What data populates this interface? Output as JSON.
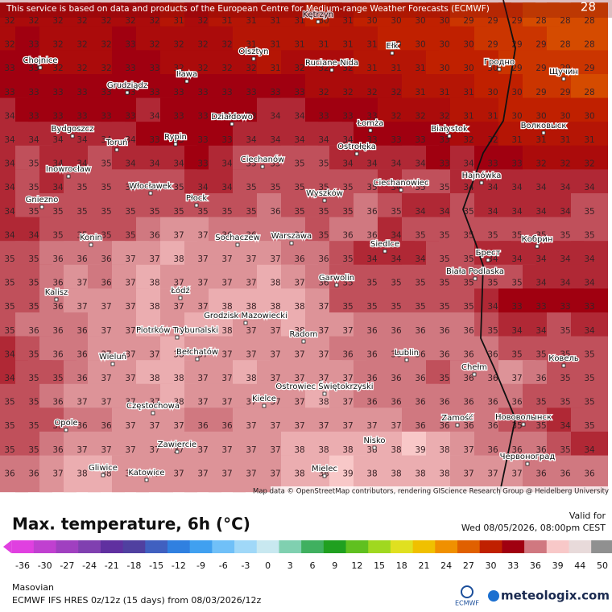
{
  "header": {
    "notice": "This service is based on data and products of the European Centre for Medium-range Weather Forecasts (ECMWF)",
    "frame": "28"
  },
  "map": {
    "attribution": "Map data © OpenStreetMap contributors, rendering GIScience Research Group @ Heidelberg University",
    "values": [
      [
        32,
        32,
        32,
        32,
        32,
        32,
        32,
        31,
        32,
        31,
        31,
        31,
        31,
        30,
        31,
        30,
        30,
        30,
        30,
        29,
        29,
        29,
        28,
        28,
        28
      ],
      [
        32,
        33,
        32,
        32,
        32,
        33,
        32,
        32,
        32,
        32,
        31,
        31,
        31,
        31,
        31,
        31,
        30,
        30,
        30,
        30,
        29,
        29,
        29,
        28,
        28
      ],
      [
        33,
        33,
        32,
        32,
        32,
        33,
        33,
        32,
        32,
        32,
        32,
        31,
        32,
        32,
        32,
        31,
        31,
        31,
        30,
        30,
        30,
        29,
        29,
        29,
        29
      ],
      [
        33,
        33,
        33,
        33,
        33,
        33,
        33,
        33,
        33,
        33,
        33,
        33,
        33,
        32,
        32,
        32,
        32,
        31,
        31,
        31,
        30,
        30,
        29,
        29,
        28
      ],
      [
        34,
        33,
        33,
        33,
        33,
        33,
        34,
        33,
        33,
        33,
        33,
        34,
        34,
        33,
        33,
        33,
        32,
        32,
        32,
        31,
        31,
        30,
        30,
        30,
        30
      ],
      [
        34,
        34,
        34,
        34,
        34,
        34,
        33,
        33,
        33,
        33,
        34,
        34,
        34,
        34,
        34,
        33,
        33,
        33,
        33,
        32,
        32,
        31,
        31,
        31,
        31
      ],
      [
        34,
        35,
        34,
        34,
        35,
        34,
        34,
        34,
        33,
        34,
        35,
        35,
        35,
        35,
        34,
        34,
        34,
        34,
        33,
        34,
        33,
        33,
        32,
        32,
        32
      ],
      [
        34,
        35,
        34,
        35,
        35,
        35,
        35,
        35,
        34,
        34,
        35,
        35,
        35,
        35,
        35,
        35,
        34,
        35,
        35,
        34,
        34,
        34,
        34,
        34,
        34
      ],
      [
        34,
        35,
        35,
        35,
        35,
        35,
        35,
        35,
        35,
        35,
        35,
        36,
        35,
        35,
        35,
        36,
        35,
        34,
        34,
        35,
        34,
        34,
        34,
        34,
        35
      ],
      [
        34,
        34,
        35,
        35,
        35,
        35,
        36,
        37,
        37,
        36,
        36,
        36,
        36,
        35,
        36,
        36,
        34,
        35,
        35,
        35,
        35,
        35,
        35,
        35,
        35
      ],
      [
        35,
        35,
        36,
        36,
        36,
        37,
        37,
        38,
        37,
        37,
        37,
        37,
        36,
        36,
        35,
        34,
        34,
        34,
        35,
        35,
        34,
        34,
        34,
        34,
        34
      ],
      [
        35,
        35,
        36,
        37,
        36,
        37,
        38,
        37,
        37,
        37,
        37,
        38,
        37,
        36,
        35,
        35,
        35,
        35,
        35,
        35,
        35,
        35,
        34,
        34,
        34
      ],
      [
        35,
        35,
        36,
        37,
        37,
        37,
        38,
        37,
        37,
        38,
        38,
        38,
        38,
        37,
        35,
        35,
        35,
        35,
        35,
        35,
        34,
        33,
        33,
        33,
        33
      ],
      [
        35,
        36,
        36,
        36,
        37,
        37,
        38,
        37,
        38,
        38,
        37,
        37,
        38,
        37,
        37,
        36,
        36,
        36,
        36,
        36,
        35,
        34,
        34,
        35,
        34
      ],
      [
        34,
        35,
        36,
        36,
        37,
        37,
        37,
        38,
        37,
        37,
        37,
        37,
        37,
        37,
        36,
        36,
        36,
        36,
        36,
        36,
        36,
        35,
        35,
        35,
        35
      ],
      [
        34,
        35,
        35,
        36,
        37,
        37,
        38,
        38,
        37,
        37,
        38,
        37,
        37,
        37,
        37,
        36,
        36,
        36,
        35,
        36,
        36,
        37,
        36,
        35,
        35
      ],
      [
        35,
        35,
        36,
        37,
        37,
        37,
        37,
        38,
        37,
        37,
        37,
        37,
        37,
        38,
        37,
        36,
        36,
        36,
        36,
        36,
        36,
        36,
        35,
        35,
        35
      ],
      [
        35,
        35,
        35,
        36,
        36,
        37,
        37,
        37,
        36,
        36,
        37,
        37,
        37,
        37,
        37,
        37,
        37,
        36,
        36,
        36,
        36,
        35,
        35,
        34,
        35
      ],
      [
        35,
        35,
        36,
        37,
        37,
        37,
        37,
        37,
        37,
        37,
        37,
        37,
        38,
        38,
        38,
        38,
        38,
        39,
        38,
        37,
        36,
        36,
        36,
        35,
        34
      ],
      [
        36,
        36,
        37,
        38,
        38,
        37,
        37,
        37,
        37,
        37,
        37,
        37,
        38,
        38,
        39,
        38,
        38,
        38,
        38,
        37,
        37,
        37,
        36,
        36,
        36
      ]
    ],
    "cities": [
      "Chojnice",
      "Iława",
      "Olsztyn",
      "Kętrzyn",
      "Ruciane-Nida",
      "Ełk",
      "Гродно",
      "Щучин",
      "Grudziądz",
      "Działdowo",
      "Łomża",
      "Białystok",
      "Волковыск",
      "Bydgoszcz",
      "Toruń",
      "Rypin",
      "Ostrołęka",
      "Ciechanów",
      "Inowrocław",
      "Włocławek",
      "Płock",
      "Wyszków",
      "Ciechanowiec",
      "Hajnówka",
      "Gniezno",
      "Konin",
      "Sochaczew",
      "Warszawa",
      "Siedlce",
      "Кобрин",
      "Брест",
      "Biała Podlaska",
      "Garwolin",
      "Kalisz",
      "Łódź",
      "Grodzisk Mazowiecki",
      "Piotrków Trybunalski",
      "Radom",
      "Bełchatów",
      "Wieluń",
      "Lublin",
      "Chełm",
      "Ковель",
      "Kielce",
      "Ostrowiec Świętokrzyski",
      "Częstochowa",
      "Opole",
      "Zamość",
      "Нововолынск",
      "Zawiercie",
      "Nisko",
      "Червоноград",
      "Gliwice",
      "Katowice",
      "Mielec"
    ]
  },
  "legend": {
    "title": "Max. temperature, 6h (°C)",
    "valid_label": "Valid for",
    "valid_time": "Wed 08/05/2026, 08:00pm CEST",
    "ticks": [
      -36,
      -30,
      -27,
      -24,
      -21,
      -18,
      -15,
      -12,
      -9,
      -6,
      -3,
      0,
      3,
      6,
      9,
      12,
      15,
      18,
      21,
      24,
      27,
      30,
      33,
      36,
      39,
      44,
      50
    ],
    "colors": [
      "#e040e0",
      "#c040d0",
      "#a040c0",
      "#8040b0",
      "#6030a0",
      "#5040a0",
      "#4060c0",
      "#3080e0",
      "#40a0f0",
      "#70c0f8",
      "#a0d8f8",
      "#c8e8f0",
      "#80d0b0",
      "#40b060",
      "#20a020",
      "#60c020",
      "#a0d820",
      "#e0e020",
      "#f0c000",
      "#f09000",
      "#e06000",
      "#c02000",
      "#a00010",
      "#d07880",
      "#f8c8c8",
      "#e8dada",
      "#909090"
    ]
  },
  "footer": {
    "region": "Masovian",
    "model": "ECMWF IFS HRES 0z/12z (15 days) from 08/03/2026/12z",
    "ecmwf": "ECMWF",
    "brand": "meteologix.com"
  }
}
